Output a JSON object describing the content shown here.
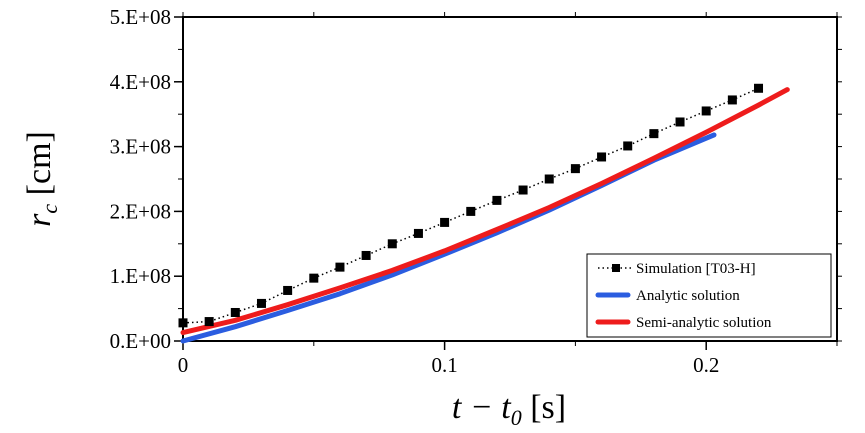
{
  "chart_data": {
    "type": "line",
    "xlabel": {
      "main": "t − t",
      "sub": "0",
      "unit": " [s]"
    },
    "ylabel": {
      "main": "r",
      "sub": "c",
      "unit": " [cm]"
    },
    "xlim": [
      0,
      0.25
    ],
    "ylim": [
      0,
      500000000
    ],
    "x_ticks": [
      {
        "value": 0,
        "label": "0"
      },
      {
        "value": 0.1,
        "label": "0.1"
      },
      {
        "value": 0.2,
        "label": "0.2"
      }
    ],
    "x_minor_step": 0.05,
    "y_ticks": [
      {
        "value": 0,
        "label": "0.E+00"
      },
      {
        "value": 100000000,
        "label": "1.E+08"
      },
      {
        "value": 200000000,
        "label": "2.E+08"
      },
      {
        "value": 300000000,
        "label": "3.E+08"
      },
      {
        "value": 400000000,
        "label": "4.E+08"
      },
      {
        "value": 500000000,
        "label": "5.E+08"
      }
    ],
    "y_minor_step": 50000000,
    "grid": false,
    "legend_position": "bottom-right",
    "series": [
      {
        "name": "Simulation [T03-H]",
        "style": "dotted-markers",
        "color": "#000000",
        "x": [
          0.0,
          0.01,
          0.02,
          0.03,
          0.04,
          0.05,
          0.06,
          0.07,
          0.08,
          0.09,
          0.1,
          0.11,
          0.12,
          0.13,
          0.14,
          0.15,
          0.16,
          0.17,
          0.18,
          0.19,
          0.2,
          0.21,
          0.22
        ],
        "y": [
          28000000,
          30000000,
          44000000,
          58000000,
          78000000,
          97000000,
          114000000,
          132000000,
          150000000,
          166000000,
          183000000,
          200000000,
          217000000,
          233000000,
          250000000,
          266000000,
          284000000,
          301000000,
          320000000,
          338000000,
          355000000,
          372000000,
          390000000
        ]
      },
      {
        "name": "Analytic solution",
        "style": "thick-line",
        "color": "#2b5de0",
        "x": [
          0.0,
          0.02,
          0.04,
          0.06,
          0.08,
          0.1,
          0.12,
          0.14,
          0.16,
          0.18,
          0.2,
          0.203
        ],
        "y": [
          0,
          22000000,
          47000000,
          73000000,
          102000000,
          134000000,
          167000000,
          202000000,
          240000000,
          279000000,
          313000000,
          318000000
        ]
      },
      {
        "name": "Semi-analytic solution",
        "style": "thick-line",
        "color": "#ee1c1c",
        "x": [
          0.0,
          0.02,
          0.04,
          0.06,
          0.08,
          0.1,
          0.12,
          0.14,
          0.16,
          0.18,
          0.2,
          0.22,
          0.231
        ],
        "y": [
          13000000,
          32000000,
          56000000,
          82000000,
          109000000,
          139000000,
          172000000,
          206000000,
          243000000,
          282000000,
          322000000,
          364000000,
          388000000
        ]
      }
    ]
  }
}
